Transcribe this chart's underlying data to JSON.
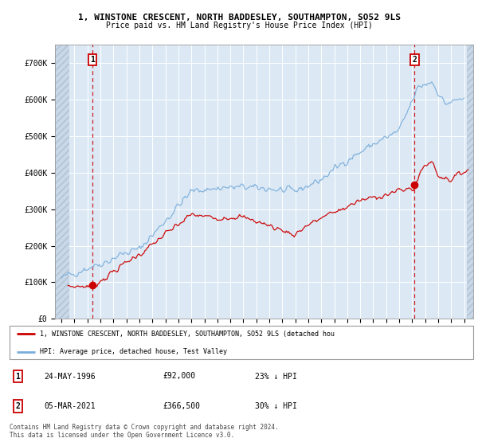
{
  "title_line1": "1, WINSTONE CRESCENT, NORTH BADDESLEY, SOUTHAMPTON, SO52 9LS",
  "title_line2": "Price paid vs. HM Land Registry's House Price Index (HPI)",
  "xlim_start": 1993.5,
  "xlim_end": 2025.7,
  "ylim_min": 0,
  "ylim_max": 750000,
  "background_color": "#dce9f5",
  "grid_color": "#ffffff",
  "purchase1_x": 1996.39,
  "purchase1_y": 92000,
  "purchase2_x": 2021.17,
  "purchase2_y": 366500,
  "legend_line1": "1, WINSTONE CRESCENT, NORTH BADDESLEY, SOUTHAMPTON, SO52 9LS (detached hou",
  "legend_line2": "HPI: Average price, detached house, Test Valley",
  "annotation1_date": "24-MAY-1996",
  "annotation1_price": "£92,000",
  "annotation1_hpi": "23% ↓ HPI",
  "annotation2_date": "05-MAR-2021",
  "annotation2_price": "£366,500",
  "annotation2_hpi": "30% ↓ HPI",
  "footer": "Contains HM Land Registry data © Crown copyright and database right 2024.\nThis data is licensed under the Open Government Licence v3.0.",
  "red_line_color": "#cc0000",
  "blue_line_color": "#7aaddb",
  "tick_years": [
    1994,
    1995,
    1996,
    1997,
    1998,
    1999,
    2000,
    2001,
    2002,
    2003,
    2004,
    2005,
    2006,
    2007,
    2008,
    2009,
    2010,
    2011,
    2012,
    2013,
    2014,
    2015,
    2016,
    2017,
    2018,
    2019,
    2020,
    2021,
    2022,
    2023,
    2024,
    2025
  ],
  "yticks": [
    0,
    100000,
    200000,
    300000,
    400000,
    500000,
    600000,
    700000
  ],
  "hatch_left_end": 1994.6,
  "hatch_right_start": 2025.2
}
